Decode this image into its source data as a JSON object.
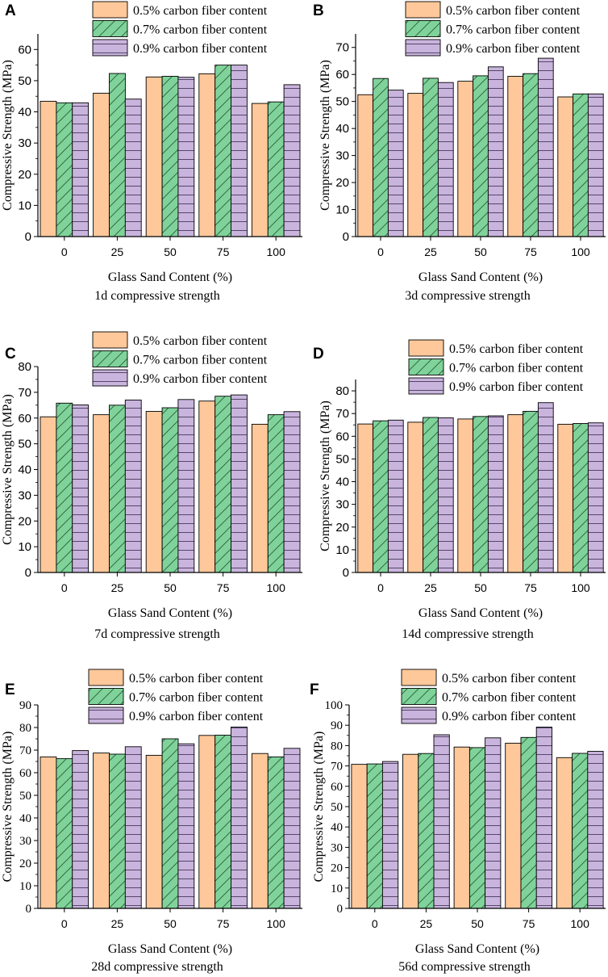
{
  "figure": {
    "category_axis_label": "Glass Sand Content (%)",
    "value_axis_label": "Compressive Strength (MPa)",
    "legend_labels": [
      "0.5% carbon fiber content",
      "0.7% carbon fiber content",
      "0.9% carbon fiber content"
    ]
  },
  "colors": {
    "series_0_5": "#FFC89A",
    "series_0_7": "#7FD39A",
    "series_0_9": "#C8B4DC",
    "axis": "#000000"
  },
  "chart_data": [
    {
      "type": "bar",
      "panel_letter": "A",
      "title": "1d compressive strength",
      "xlabel": "Glass Sand Content (%)",
      "ylabel": "Compressive Strength (MPa)",
      "categories": [
        "0",
        "25",
        "50",
        "75",
        "100"
      ],
      "ylim": [
        0,
        65
      ],
      "yticks": [
        0,
        10,
        20,
        30,
        40,
        50,
        60
      ],
      "series": [
        {
          "name": "0.5% carbon fiber content",
          "values": [
            43.4,
            46.0,
            51.2,
            52.2,
            42.7
          ]
        },
        {
          "name": "0.7% carbon fiber content",
          "values": [
            42.9,
            52.3,
            51.4,
            55.0,
            43.2
          ]
        },
        {
          "name": "0.9% carbon fiber content",
          "values": [
            42.9,
            44.1,
            51.1,
            55.0,
            48.7
          ]
        }
      ]
    },
    {
      "type": "bar",
      "panel_letter": "B",
      "title": "3d compressive strength",
      "xlabel": "Glass Sand Content (%)",
      "ylabel": "Compressive Strength (MPa)",
      "categories": [
        "0",
        "25",
        "50",
        "75",
        "100"
      ],
      "ylim": [
        0,
        75
      ],
      "yticks": [
        0,
        10,
        20,
        30,
        40,
        50,
        60,
        70
      ],
      "series": [
        {
          "name": "0.5% carbon fiber content",
          "values": [
            52.5,
            53.0,
            57.5,
            59.3,
            51.7
          ]
        },
        {
          "name": "0.7% carbon fiber content",
          "values": [
            58.5,
            58.6,
            59.5,
            60.3,
            52.8
          ]
        },
        {
          "name": "0.9% carbon fiber content",
          "values": [
            54.2,
            57.0,
            62.8,
            66.0,
            52.8
          ]
        }
      ]
    },
    {
      "type": "bar",
      "panel_letter": "C",
      "title": "7d compressive strength",
      "xlabel": "Glass Sand Content (%)",
      "ylabel": "Compressive Strength (MPa)",
      "categories": [
        "0",
        "25",
        "50",
        "75",
        "100"
      ],
      "ylim": [
        0,
        80
      ],
      "yticks": [
        0,
        10,
        20,
        30,
        40,
        50,
        60,
        70,
        80
      ],
      "series": [
        {
          "name": "0.5% carbon fiber content",
          "values": [
            60.5,
            61.3,
            62.6,
            66.6,
            57.6
          ]
        },
        {
          "name": "0.7% carbon fiber content",
          "values": [
            65.8,
            65.0,
            64.0,
            68.5,
            61.3
          ]
        },
        {
          "name": "0.9% carbon fiber content",
          "values": [
            65.1,
            67.0,
            67.2,
            69.0,
            62.5
          ]
        }
      ]
    },
    {
      "type": "bar",
      "panel_letter": "D",
      "title": "14d compressive strength",
      "xlabel": "Glass Sand Content (%)",
      "ylabel": "Compressive Strength (MPa)",
      "categories": [
        "0",
        "25",
        "50",
        "75",
        "100"
      ],
      "ylim": [
        0,
        85
      ],
      "yticks": [
        0,
        10,
        20,
        30,
        40,
        50,
        60,
        70,
        80
      ],
      "series": [
        {
          "name": "0.5% carbon fiber content",
          "values": [
            65.4,
            66.2,
            67.6,
            69.5,
            65.3
          ]
        },
        {
          "name": "0.7% carbon fiber content",
          "values": [
            66.8,
            68.3,
            68.7,
            71.0,
            65.6
          ]
        },
        {
          "name": "0.9% carbon fiber content",
          "values": [
            67.1,
            68.1,
            69.0,
            74.8,
            65.9
          ]
        }
      ]
    },
    {
      "type": "bar",
      "panel_letter": "E",
      "title": "28d compressive strength",
      "xlabel": "Glass Sand Content (%)",
      "ylabel": "Compressive Strength (MPa)",
      "categories": [
        "0",
        "25",
        "50",
        "75",
        "100"
      ],
      "ylim": [
        0,
        90
      ],
      "yticks": [
        0,
        10,
        20,
        30,
        40,
        50,
        60,
        70,
        80,
        90
      ],
      "series": [
        {
          "name": "0.5% carbon fiber content",
          "values": [
            67.0,
            68.7,
            67.7,
            76.5,
            68.5
          ]
        },
        {
          "name": "0.7% carbon fiber content",
          "values": [
            66.2,
            68.2,
            75.0,
            76.6,
            67.0
          ]
        },
        {
          "name": "0.9% carbon fiber content",
          "values": [
            69.8,
            71.5,
            72.8,
            80.2,
            70.8
          ]
        }
      ]
    },
    {
      "type": "bar",
      "panel_letter": "F",
      "title": "56d compressive strength",
      "xlabel": "Glass Sand Content (%)",
      "ylabel": "Compressive Strength (MPa)",
      "categories": [
        "0",
        "25",
        "50",
        "75",
        "100"
      ],
      "ylim": [
        0,
        100
      ],
      "yticks": [
        0,
        10,
        20,
        30,
        40,
        50,
        60,
        70,
        80,
        90,
        100
      ],
      "series": [
        {
          "name": "0.5% carbon fiber content",
          "values": [
            70.8,
            75.7,
            79.3,
            81.2,
            74.1
          ]
        },
        {
          "name": "0.7% carbon fiber content",
          "values": [
            71.0,
            76.1,
            79.0,
            84.0,
            76.2
          ]
        },
        {
          "name": "0.9% carbon fiber content",
          "values": [
            72.2,
            85.3,
            83.8,
            89.1,
            77.2
          ]
        }
      ]
    }
  ]
}
